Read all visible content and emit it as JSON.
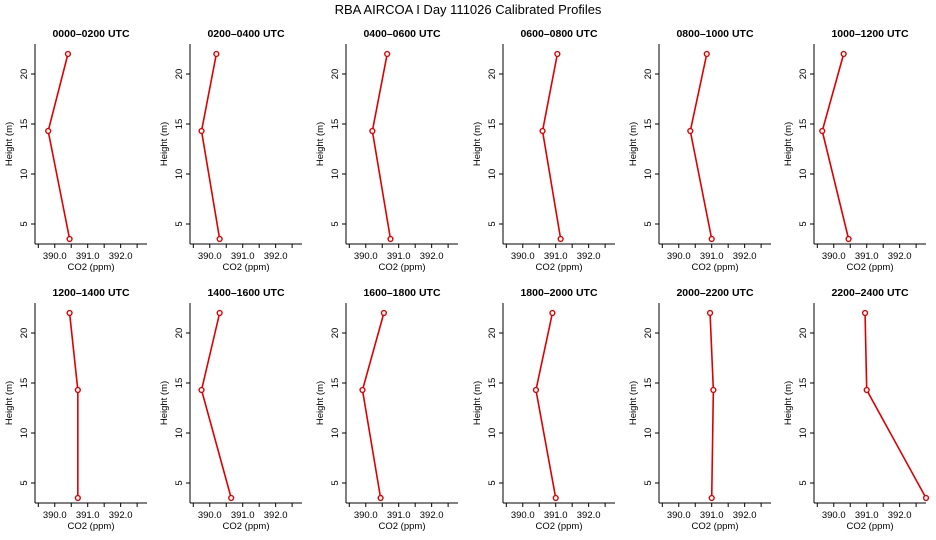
{
  "figure": {
    "title": "RBA AIRCOA I  Day 111026  Calibrated Profiles"
  },
  "style": {
    "line_color": "#dd0000",
    "axis_color": "#000000"
  },
  "chart_data": [
    {
      "type": "line",
      "title": "0000–0200 UTC",
      "xlabel": "CO2 (ppm)",
      "ylabel": "Height (m)",
      "xlim": [
        389.4,
        392.8
      ],
      "ylim": [
        3,
        23
      ],
      "xticks": [
        390.0,
        391.0,
        392.0
      ],
      "xtick_labels": [
        "390.0",
        "391.0",
        "392.0"
      ],
      "yticks": [
        5,
        10,
        15,
        20
      ],
      "ytick_labels": [
        "5",
        "10",
        "15",
        "20"
      ],
      "x": [
        390.4,
        389.8,
        390.45
      ],
      "y": [
        22,
        14.3,
        3.5
      ]
    },
    {
      "type": "line",
      "title": "0200–0400 UTC",
      "xlabel": "CO2 (ppm)",
      "ylabel": "Height (m)",
      "xlim": [
        389.4,
        392.8
      ],
      "ylim": [
        3,
        23
      ],
      "xticks": [
        390.0,
        391.0,
        392.0
      ],
      "xtick_labels": [
        "390.0",
        "391.0",
        "392.0"
      ],
      "yticks": [
        5,
        10,
        15,
        20
      ],
      "ytick_labels": [
        "5",
        "10",
        "15",
        "20"
      ],
      "x": [
        390.2,
        389.75,
        390.3
      ],
      "y": [
        22,
        14.3,
        3.5
      ]
    },
    {
      "type": "line",
      "title": "0400–0600 UTC",
      "xlabel": "CO2 (ppm)",
      "ylabel": "Height (m)",
      "xlim": [
        389.4,
        392.8
      ],
      "ylim": [
        3,
        23
      ],
      "xticks": [
        390.0,
        391.0,
        392.0
      ],
      "xtick_labels": [
        "390.0",
        "391.0",
        "392.0"
      ],
      "yticks": [
        5,
        10,
        15,
        20
      ],
      "ytick_labels": [
        "5",
        "10",
        "15",
        "20"
      ],
      "x": [
        390.65,
        390.2,
        390.75
      ],
      "y": [
        22,
        14.3,
        3.5
      ]
    },
    {
      "type": "line",
      "title": "0600–0800 UTC",
      "xlabel": "CO2 (ppm)",
      "ylabel": "Height (m)",
      "xlim": [
        389.4,
        392.8
      ],
      "ylim": [
        3,
        23
      ],
      "xticks": [
        390.0,
        391.0,
        392.0
      ],
      "xtick_labels": [
        "390.0",
        "391.0",
        "392.0"
      ],
      "yticks": [
        5,
        10,
        15,
        20
      ],
      "ytick_labels": [
        "5",
        "10",
        "15",
        "20"
      ],
      "x": [
        391.05,
        390.6,
        391.15
      ],
      "y": [
        22,
        14.3,
        3.5
      ]
    },
    {
      "type": "line",
      "title": "0800–1000 UTC",
      "xlabel": "CO2 (ppm)",
      "ylabel": "Height (m)",
      "xlim": [
        389.4,
        392.8
      ],
      "ylim": [
        3,
        23
      ],
      "xticks": [
        390.0,
        391.0,
        392.0
      ],
      "xtick_labels": [
        "390.0",
        "391.0",
        "392.0"
      ],
      "yticks": [
        5,
        10,
        15,
        20
      ],
      "ytick_labels": [
        "5",
        "10",
        "15",
        "20"
      ],
      "x": [
        390.85,
        390.35,
        391.0
      ],
      "y": [
        22,
        14.3,
        3.5
      ]
    },
    {
      "type": "line",
      "title": "1000–1200 UTC",
      "xlabel": "CO2 (ppm)",
      "ylabel": "Height (m)",
      "xlim": [
        389.4,
        392.8
      ],
      "ylim": [
        3,
        23
      ],
      "xticks": [
        390.0,
        391.0,
        392.0
      ],
      "xtick_labels": [
        "390.0",
        "391.0",
        "392.0"
      ],
      "yticks": [
        5,
        10,
        15,
        20
      ],
      "ytick_labels": [
        "5",
        "10",
        "15",
        "20"
      ],
      "x": [
        390.3,
        389.65,
        390.45
      ],
      "y": [
        22,
        14.3,
        3.5
      ]
    },
    {
      "type": "line",
      "title": "1200–1400 UTC",
      "xlabel": "CO2 (ppm)",
      "ylabel": "Height (m)",
      "xlim": [
        389.4,
        392.8
      ],
      "ylim": [
        3,
        23
      ],
      "xticks": [
        390.0,
        391.0,
        392.0
      ],
      "xtick_labels": [
        "390.0",
        "391.0",
        "392.0"
      ],
      "yticks": [
        5,
        10,
        15,
        20
      ],
      "ytick_labels": [
        "5",
        "10",
        "15",
        "20"
      ],
      "x": [
        390.45,
        390.7,
        390.7
      ],
      "y": [
        22,
        14.3,
        3.5
      ]
    },
    {
      "type": "line",
      "title": "1400–1600 UTC",
      "xlabel": "CO2 (ppm)",
      "ylabel": "Height (m)",
      "xlim": [
        389.4,
        392.8
      ],
      "ylim": [
        3,
        23
      ],
      "xticks": [
        390.0,
        391.0,
        392.0
      ],
      "xtick_labels": [
        "390.0",
        "391.0",
        "392.0"
      ],
      "yticks": [
        5,
        10,
        15,
        20
      ],
      "ytick_labels": [
        "5",
        "10",
        "15",
        "20"
      ],
      "x": [
        390.3,
        389.75,
        390.65
      ],
      "y": [
        22,
        14.3,
        3.5
      ]
    },
    {
      "type": "line",
      "title": "1600–1800 UTC",
      "xlabel": "CO2 (ppm)",
      "ylabel": "Height (m)",
      "xlim": [
        389.4,
        392.8
      ],
      "ylim": [
        3,
        23
      ],
      "xticks": [
        390.0,
        391.0,
        392.0
      ],
      "xtick_labels": [
        "390.0",
        "391.0",
        "392.0"
      ],
      "yticks": [
        5,
        10,
        15,
        20
      ],
      "ytick_labels": [
        "5",
        "10",
        "15",
        "20"
      ],
      "x": [
        390.55,
        389.9,
        390.45
      ],
      "y": [
        22,
        14.3,
        3.5
      ]
    },
    {
      "type": "line",
      "title": "1800–2000 UTC",
      "xlabel": "CO2 (ppm)",
      "ylabel": "Height (m)",
      "xlim": [
        389.4,
        392.8
      ],
      "ylim": [
        3,
        23
      ],
      "xticks": [
        390.0,
        391.0,
        392.0
      ],
      "xtick_labels": [
        "390.0",
        "391.0",
        "392.0"
      ],
      "yticks": [
        5,
        10,
        15,
        20
      ],
      "ytick_labels": [
        "5",
        "10",
        "15",
        "20"
      ],
      "x": [
        390.9,
        390.4,
        391.0
      ],
      "y": [
        22,
        14.3,
        3.5
      ]
    },
    {
      "type": "line",
      "title": "2000–2200 UTC",
      "xlabel": "CO2 (ppm)",
      "ylabel": "Height (m)",
      "xlim": [
        389.4,
        392.8
      ],
      "ylim": [
        3,
        23
      ],
      "xticks": [
        390.0,
        391.0,
        392.0
      ],
      "xtick_labels": [
        "390.0",
        "391.0",
        "392.0"
      ],
      "yticks": [
        5,
        10,
        15,
        20
      ],
      "ytick_labels": [
        "5",
        "10",
        "15",
        "20"
      ],
      "x": [
        390.95,
        391.05,
        391.0
      ],
      "y": [
        22,
        14.3,
        3.5
      ]
    },
    {
      "type": "line",
      "title": "2200–2400 UTC",
      "xlabel": "CO2 (ppm)",
      "ylabel": "Height (m)",
      "xlim": [
        389.4,
        392.8
      ],
      "ylim": [
        3,
        23
      ],
      "xticks": [
        390.0,
        391.0,
        392.0
      ],
      "xtick_labels": [
        "390.0",
        "391.0",
        "392.0"
      ],
      "yticks": [
        5,
        10,
        15,
        20
      ],
      "ytick_labels": [
        "5",
        "10",
        "15",
        "20"
      ],
      "x": [
        390.95,
        391.0,
        392.8
      ],
      "y": [
        22,
        14.3,
        3.5
      ]
    }
  ]
}
